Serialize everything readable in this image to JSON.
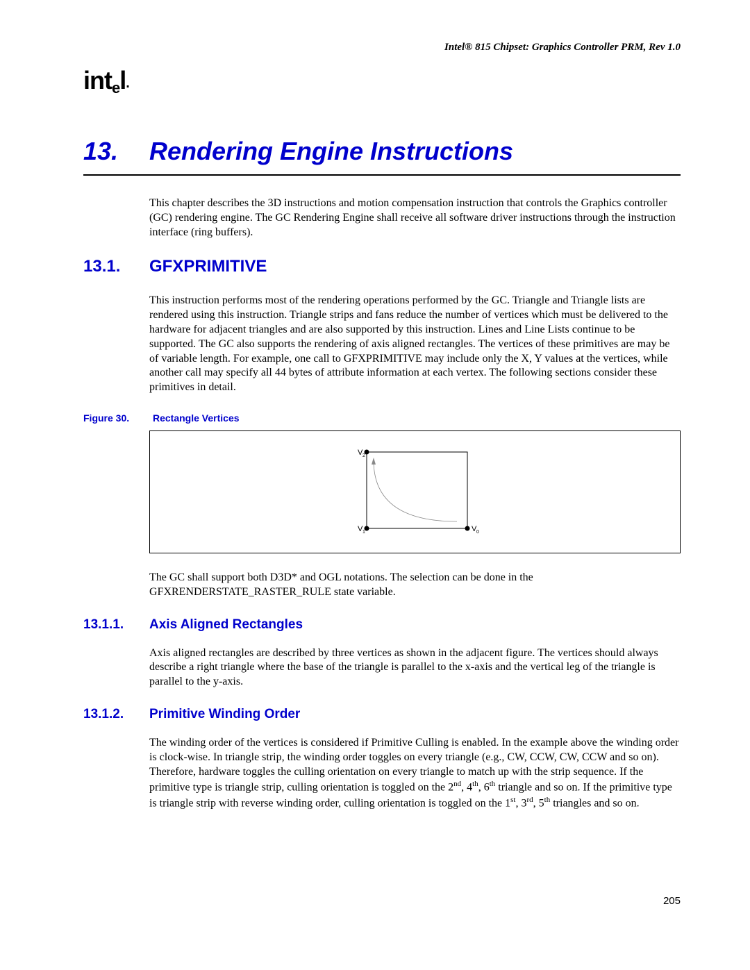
{
  "doc_header": "Intel® 815 Chipset: Graphics Controller PRM, Rev 1.0",
  "logo_text": "intel",
  "chapter": {
    "number": "13.",
    "title": "Rendering Engine Instructions"
  },
  "intro_paragraph": "This chapter describes the 3D instructions and motion compensation instruction that controls the Graphics controller (GC) rendering engine. The GC Rendering Engine shall receive all software driver instructions through the instruction interface (ring buffers).",
  "section_13_1": {
    "number": "13.1.",
    "title": "GFXPRIMITIVE",
    "paragraph": "This instruction performs most of the rendering operations performed by the GC. Triangle and Triangle lists are rendered using this instruction. Triangle strips and fans reduce the number of vertices which must be delivered to the hardware for adjacent triangles and are also supported by this instruction. Lines and Line Lists continue to be supported. The GC also supports the rendering of axis aligned rectangles. The vertices of these primitives are may be of variable length. For example, one call to GFXPRIMITIVE may include only the X, Y values at the vertices, while another call may specify all 44 bytes of attribute information at each vertex. The following sections consider these primitives in detail.",
    "figure": {
      "label": "Figure 30.",
      "title": "Rectangle Vertices",
      "v0": "V",
      "v0_sub": "0",
      "v1": "V",
      "v1_sub": "1",
      "v2": "V",
      "v2_sub": "2"
    },
    "after_figure": "The GC shall support both D3D* and OGL notations. The selection can be done in the GFXRENDERSTATE_RASTER_RULE state variable."
  },
  "section_13_1_1": {
    "number": "13.1.1.",
    "title": "Axis Aligned Rectangles",
    "paragraph": "Axis aligned rectangles are described by three vertices as shown in the adjacent figure. The vertices should always describe a right triangle where the base of the triangle is parallel to the x-axis and the vertical leg of the triangle is parallel to the y-axis."
  },
  "section_13_1_2": {
    "number": "13.1.2.",
    "title": "Primitive Winding Order",
    "paragraph_html": "The winding order of the vertices is considered if Primitive Culling is enabled. In the example above the winding order is clock-wise. In triangle strip, the winding order toggles on every triangle (e.g., CW, CCW, CW, CCW and so on). Therefore, hardware toggles the culling orientation on every triangle to match up with the strip sequence. If the primitive type is triangle strip, culling orientation is toggled on the 2<sup>nd</sup>, 4<sup>th</sup>, 6<sup>th</sup> triangle and so on. If the primitive type is triangle strip with reverse winding order, culling orientation is toggled on the 1<sup>st</sup>, 3<sup>rd</sup>, 5<sup>th</sup> triangles and so on."
  },
  "page_number": "205",
  "figure_style": {
    "rect_stroke": "#000000",
    "curve_stroke": "#808080",
    "vertex_fill": "#000000",
    "label_font_size": 10
  }
}
